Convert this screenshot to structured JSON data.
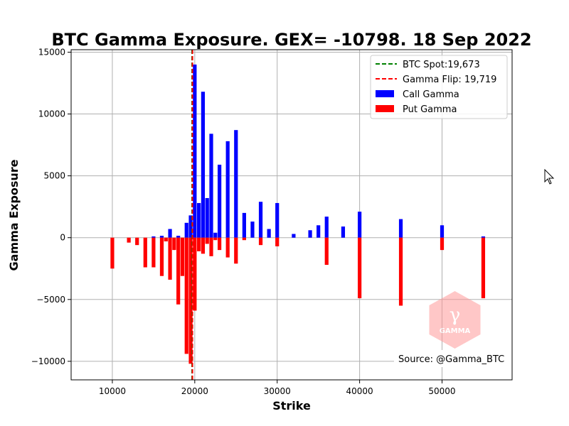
{
  "chart_data": {
    "type": "bar",
    "title": "BTC Gamma Exposure. GEX= -10798. 18 Sep 2022",
    "xlabel": "Strike",
    "ylabel": "Gamma Exposure",
    "xlim": [
      5000,
      58500
    ],
    "ylim": [
      -11500,
      15200
    ],
    "xticks": [
      10000,
      20000,
      30000,
      40000,
      50000
    ],
    "yticks": [
      -10000,
      -5000,
      0,
      5000,
      10000,
      15000
    ],
    "xtick_labels": [
      "10000",
      "20000",
      "30000",
      "40000",
      "50000"
    ],
    "ytick_labels": [
      "−10000",
      "−5000",
      "0",
      "5000",
      "10000",
      "15000"
    ],
    "grid": true,
    "legend_position": "top-right",
    "bar_width": 450,
    "series": [
      {
        "name": "Call Gamma",
        "color": "#0000ff",
        "points": [
          {
            "x": 15000,
            "y": 100
          },
          {
            "x": 16000,
            "y": 150
          },
          {
            "x": 17000,
            "y": 700
          },
          {
            "x": 18000,
            "y": 150
          },
          {
            "x": 19000,
            "y": 1200
          },
          {
            "x": 19500,
            "y": 1800
          },
          {
            "x": 20000,
            "y": 14000
          },
          {
            "x": 20500,
            "y": 2800
          },
          {
            "x": 21000,
            "y": 11800
          },
          {
            "x": 21500,
            "y": 3200
          },
          {
            "x": 22000,
            "y": 8400
          },
          {
            "x": 22500,
            "y": 400
          },
          {
            "x": 23000,
            "y": 5900
          },
          {
            "x": 24000,
            "y": 7800
          },
          {
            "x": 25000,
            "y": 8700
          },
          {
            "x": 26000,
            "y": 2000
          },
          {
            "x": 27000,
            "y": 1300
          },
          {
            "x": 28000,
            "y": 2900
          },
          {
            "x": 29000,
            "y": 700
          },
          {
            "x": 30000,
            "y": 2800
          },
          {
            "x": 32000,
            "y": 300
          },
          {
            "x": 34000,
            "y": 600
          },
          {
            "x": 35000,
            "y": 1000
          },
          {
            "x": 36000,
            "y": 1700
          },
          {
            "x": 38000,
            "y": 900
          },
          {
            "x": 40000,
            "y": 2100
          },
          {
            "x": 45000,
            "y": 1500
          },
          {
            "x": 50000,
            "y": 1000
          },
          {
            "x": 55000,
            "y": 100
          }
        ]
      },
      {
        "name": "Put Gamma",
        "color": "#ff0000",
        "points": [
          {
            "x": 10000,
            "y": -2500
          },
          {
            "x": 12000,
            "y": -400
          },
          {
            "x": 13000,
            "y": -600
          },
          {
            "x": 14000,
            "y": -2400
          },
          {
            "x": 15000,
            "y": -2400
          },
          {
            "x": 16000,
            "y": -3100
          },
          {
            "x": 16500,
            "y": -300
          },
          {
            "x": 17000,
            "y": -3400
          },
          {
            "x": 17500,
            "y": -1000
          },
          {
            "x": 18000,
            "y": -5400
          },
          {
            "x": 18500,
            "y": -3100
          },
          {
            "x": 19000,
            "y": -9400
          },
          {
            "x": 19500,
            "y": -10200
          },
          {
            "x": 20000,
            "y": -5900
          },
          {
            "x": 20500,
            "y": -1100
          },
          {
            "x": 21000,
            "y": -1300
          },
          {
            "x": 21500,
            "y": -500
          },
          {
            "x": 22000,
            "y": -1500
          },
          {
            "x": 22500,
            "y": -200
          },
          {
            "x": 23000,
            "y": -1000
          },
          {
            "x": 24000,
            "y": -1600
          },
          {
            "x": 25000,
            "y": -2100
          },
          {
            "x": 26000,
            "y": -200
          },
          {
            "x": 28000,
            "y": -600
          },
          {
            "x": 30000,
            "y": -700
          },
          {
            "x": 36000,
            "y": -2200
          },
          {
            "x": 40000,
            "y": -4900
          },
          {
            "x": 45000,
            "y": -5500
          },
          {
            "x": 50000,
            "y": -1000
          },
          {
            "x": 55000,
            "y": -4900
          }
        ]
      }
    ],
    "vlines": [
      {
        "name": "BTC Spot:19,673",
        "x": 19673,
        "color": "#008000",
        "style": "dashed"
      },
      {
        "name": "Gamma Flip: 19,719",
        "x": 19719,
        "color": "#ff0000",
        "style": "dashed"
      }
    ],
    "annotations": {
      "source": "Source: @Gamma_BTC",
      "watermark_symbol": "γ",
      "watermark_text": "GAMMA",
      "watermark_color": "#ff9999"
    }
  }
}
